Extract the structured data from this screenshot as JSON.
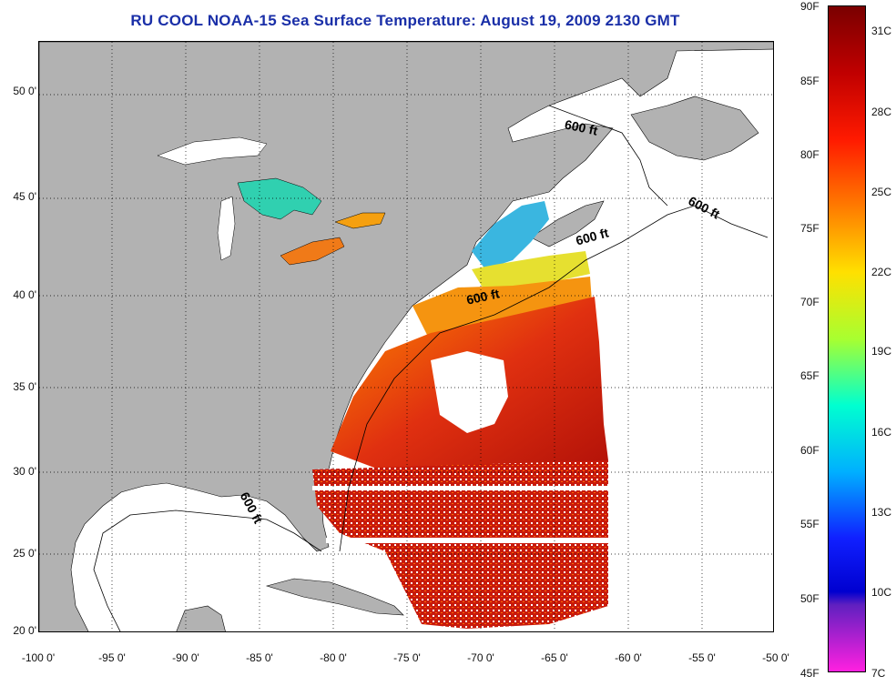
{
  "title": "RU COOL  NOAA-15  Sea Surface Temperature:  August 19, 2009 2130 GMT",
  "map": {
    "lat_labels": [
      "50 0'",
      "45 0'",
      "40 0'",
      "35 0'",
      "30 0'",
      "25 0'",
      "20 0'"
    ],
    "lon_labels": [
      "-100 0'",
      "-95 0'",
      "-90 0'",
      "-85 0'",
      "-80 0'",
      "-75 0'",
      "-70 0'",
      "-65 0'",
      "-60 0'",
      "-55 0'",
      "-50 0'"
    ],
    "contour_labels": [
      "600 ft",
      "600 ft",
      "600 ft",
      "600 ft",
      "600 ft"
    ],
    "colors": {
      "land": "#b2b2b2",
      "ocean_no_data": "#ffffff",
      "grid": "#000000"
    }
  },
  "colorbar": {
    "fahrenheit_labels": [
      "90F",
      "85F",
      "80F",
      "75F",
      "70F",
      "65F",
      "60F",
      "55F",
      "50F",
      "45F"
    ],
    "celsius_labels": [
      "31C",
      "28C",
      "25C",
      "22C",
      "19C",
      "16C",
      "13C",
      "10C",
      "7C"
    ],
    "colors": [
      "#8b0000",
      "#ff0000",
      "#ff7f00",
      "#ffff00",
      "#00e5ff",
      "#0000ff",
      "#ff00ff"
    ]
  }
}
